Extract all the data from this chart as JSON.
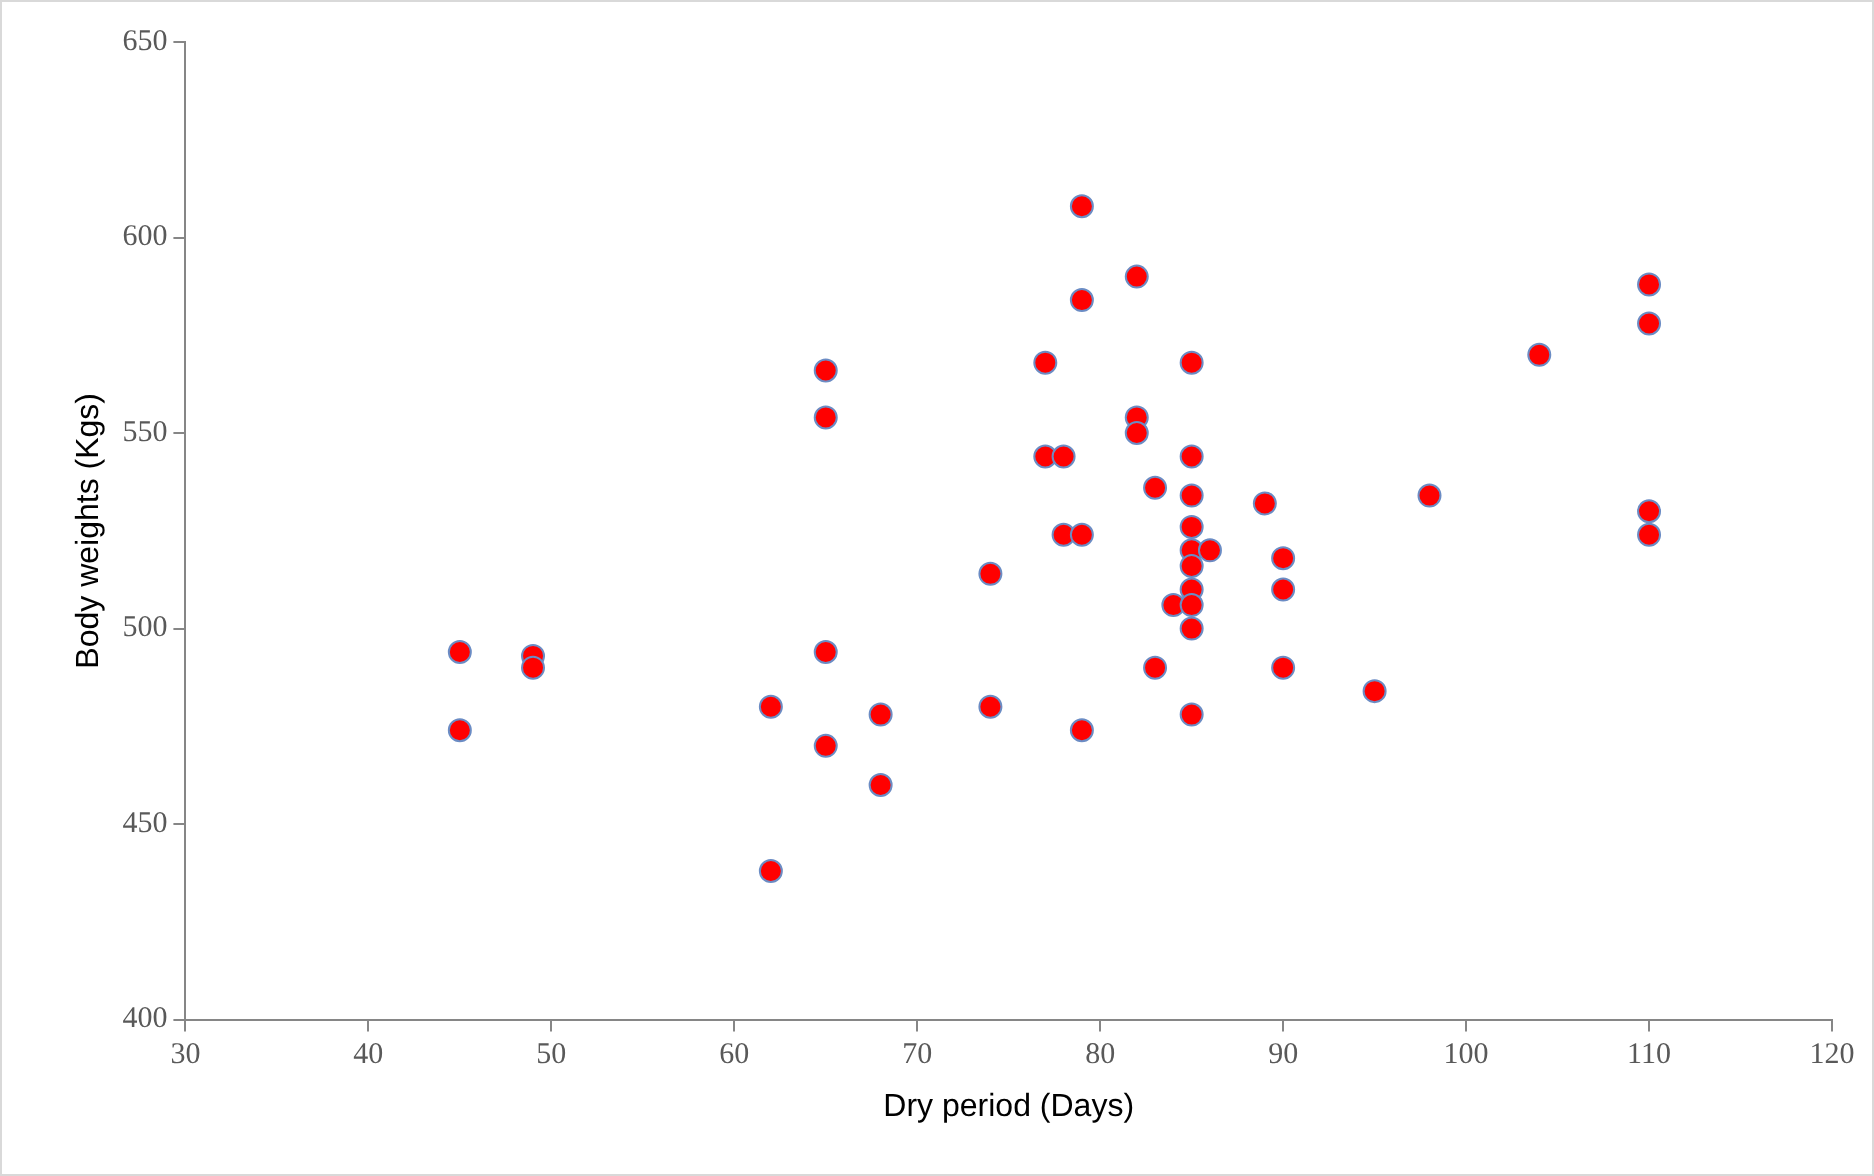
{
  "chart_data": {
    "type": "scatter",
    "xlabel": "Dry period (Days)",
    "ylabel": "Body weights (Kgs)",
    "xlim": [
      30,
      120
    ],
    "xticks": [
      30,
      40,
      50,
      60,
      70,
      80,
      90,
      100,
      110,
      120
    ],
    "ylim": [
      400,
      650
    ],
    "yticks": [
      400,
      450,
      500,
      550,
      600,
      650
    ],
    "grid": false,
    "legend": false,
    "marker": "circle",
    "series": [
      {
        "color": "#ff0000",
        "x": [
          45,
          45,
          49,
          49,
          62,
          62,
          65,
          65,
          65,
          65,
          68,
          68,
          74,
          74,
          77,
          77,
          78,
          78,
          79,
          79,
          79,
          79,
          82,
          82,
          82,
          83,
          83,
          84,
          85,
          85,
          85,
          85,
          85,
          85,
          85,
          85,
          85,
          85,
          86,
          89,
          90,
          90,
          90,
          95,
          98,
          104,
          110,
          110,
          110,
          110
        ],
        "values": [
          494,
          474,
          493,
          490,
          480,
          438,
          566,
          554,
          494,
          470,
          478,
          460,
          514,
          480,
          568,
          544,
          544,
          524,
          608,
          584,
          524,
          474,
          590,
          554,
          550,
          536,
          490,
          506,
          568,
          544,
          534,
          526,
          520,
          516,
          510,
          506,
          500,
          478,
          520,
          532,
          518,
          510,
          490,
          484,
          534,
          570,
          588,
          578,
          530,
          524
        ]
      }
    ]
  }
}
